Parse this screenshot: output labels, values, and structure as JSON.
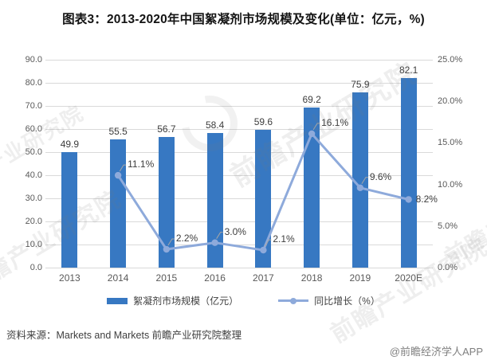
{
  "chart_data": {
    "type": "bar-line-combo",
    "title": "图表3：2013-2020年中国絮凝剂市场规模及变化(单位：亿元，%)",
    "categories": [
      "2013",
      "2014",
      "2015",
      "2016",
      "2017",
      "2018",
      "2019",
      "2020E"
    ],
    "series": [
      {
        "name": "絮凝剂市场规模（亿元）",
        "type": "bar",
        "axis": "left",
        "values": [
          49.9,
          55.5,
          56.7,
          58.4,
          59.6,
          69.2,
          75.9,
          82.1
        ]
      },
      {
        "name": "同比增长（%）",
        "type": "line",
        "axis": "right",
        "values": [
          null,
          11.1,
          2.2,
          3.0,
          2.1,
          16.1,
          9.6,
          8.2
        ]
      }
    ],
    "left_axis": {
      "min": 0,
      "max": 90,
      "step": 10
    },
    "right_axis": {
      "min": 0,
      "max": 25,
      "step": 5
    },
    "grid": true,
    "legend_position": "bottom"
  },
  "footer": {
    "source": "资料来源：Markets and Markets 前瞻产业研究院整理",
    "credit": "@前瞻经济学人APP"
  },
  "watermark": {
    "text": "前瞻产业研究院"
  },
  "colors": {
    "bar": "#3778C2",
    "line": "#8EAADB",
    "grid": "#D9D9D9",
    "axis_text": "#595959",
    "label_text": "#3d3d3d"
  }
}
